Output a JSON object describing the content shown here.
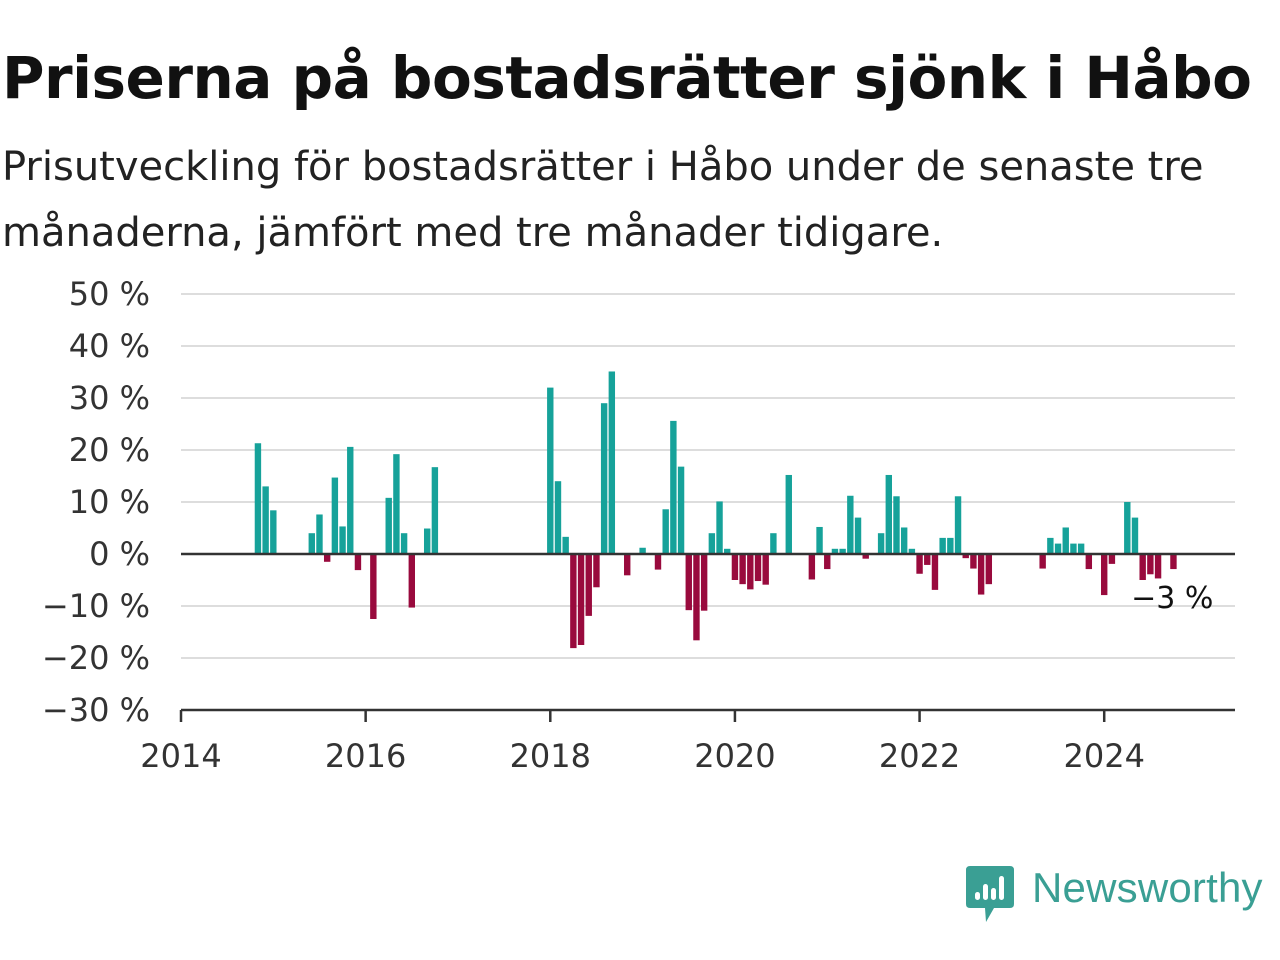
{
  "title": "Priserna på bostadsrätter sjönk i Håbo",
  "subtitle": "Prisutveckling för bostadsrätter i Håbo under de senaste tre månaderna, jämfört med tre månader tidigare.",
  "brand": {
    "name": "Newsworthy",
    "color": "#3a9f94",
    "icon": "newsworthy-logo-icon"
  },
  "colors": {
    "positive": "#16a29a",
    "negative": "#990a3d",
    "grid": "#dddddd",
    "zero_line": "#333333"
  },
  "chart_data": {
    "type": "bar",
    "x_unit": "month",
    "xlim": [
      "2014-01",
      "2025-06"
    ],
    "ylim": [
      -30,
      50
    ],
    "grid": true,
    "y_ticks": [
      {
        "value": 50,
        "label": "50 %"
      },
      {
        "value": 40,
        "label": "40 %"
      },
      {
        "value": 30,
        "label": "30 %"
      },
      {
        "value": 20,
        "label": "20 %"
      },
      {
        "value": 10,
        "label": "10 %"
      },
      {
        "value": 0,
        "label": "0 %"
      },
      {
        "value": -10,
        "label": "−10 %"
      },
      {
        "value": -20,
        "label": "−20 %"
      },
      {
        "value": -30,
        "label": "−30 %"
      }
    ],
    "x_ticks": [
      {
        "date": "2014-01",
        "label": "2014"
      },
      {
        "date": "2016-01",
        "label": "2016"
      },
      {
        "date": "2018-01",
        "label": "2018"
      },
      {
        "date": "2020-01",
        "label": "2020"
      },
      {
        "date": "2022-01",
        "label": "2022"
      },
      {
        "date": "2024-01",
        "label": "2024"
      }
    ],
    "last_value_label": "−3 %",
    "series": [
      {
        "points": [
          {
            "x": "2014-11",
            "y": 21.3
          },
          {
            "x": "2014-12",
            "y": 13.0
          },
          {
            "x": "2015-01",
            "y": 8.4
          },
          {
            "x": "2015-06",
            "y": 4.0
          },
          {
            "x": "2015-07",
            "y": 7.6
          },
          {
            "x": "2015-08",
            "y": -1.5
          },
          {
            "x": "2015-09",
            "y": 14.7
          },
          {
            "x": "2015-10",
            "y": 5.3
          },
          {
            "x": "2015-11",
            "y": 20.6
          },
          {
            "x": "2015-12",
            "y": -3.1
          },
          {
            "x": "2016-02",
            "y": -12.5
          },
          {
            "x": "2016-04",
            "y": 10.8
          },
          {
            "x": "2016-05",
            "y": 19.2
          },
          {
            "x": "2016-06",
            "y": 4.0
          },
          {
            "x": "2016-07",
            "y": -10.3
          },
          {
            "x": "2016-09",
            "y": 4.9
          },
          {
            "x": "2016-10",
            "y": 16.7
          },
          {
            "x": "2018-01",
            "y": 32.0
          },
          {
            "x": "2018-02",
            "y": 14.0
          },
          {
            "x": "2018-03",
            "y": 3.3
          },
          {
            "x": "2018-04",
            "y": -18.1
          },
          {
            "x": "2018-05",
            "y": -17.5
          },
          {
            "x": "2018-06",
            "y": -11.9
          },
          {
            "x": "2018-07",
            "y": -6.4
          },
          {
            "x": "2018-08",
            "y": 29.0
          },
          {
            "x": "2018-09",
            "y": 35.1
          },
          {
            "x": "2018-11",
            "y": -4.1
          },
          {
            "x": "2019-01",
            "y": 1.2
          },
          {
            "x": "2019-03",
            "y": -3.0
          },
          {
            "x": "2019-04",
            "y": 8.6
          },
          {
            "x": "2019-05",
            "y": 25.6
          },
          {
            "x": "2019-06",
            "y": 16.8
          },
          {
            "x": "2019-07",
            "y": -10.8
          },
          {
            "x": "2019-08",
            "y": -16.6
          },
          {
            "x": "2019-09",
            "y": -10.9
          },
          {
            "x": "2019-10",
            "y": 4.0
          },
          {
            "x": "2019-11",
            "y": 10.1
          },
          {
            "x": "2019-12",
            "y": 1.0
          },
          {
            "x": "2020-01",
            "y": -5.0
          },
          {
            "x": "2020-02",
            "y": -5.8
          },
          {
            "x": "2020-03",
            "y": -6.8
          },
          {
            "x": "2020-04",
            "y": -5.2
          },
          {
            "x": "2020-05",
            "y": -5.9
          },
          {
            "x": "2020-06",
            "y": 4.0
          },
          {
            "x": "2020-08",
            "y": 15.2
          },
          {
            "x": "2020-11",
            "y": -4.9
          },
          {
            "x": "2020-12",
            "y": 5.2
          },
          {
            "x": "2021-01",
            "y": -2.9
          },
          {
            "x": "2021-02",
            "y": 1.0
          },
          {
            "x": "2021-03",
            "y": 1.0
          },
          {
            "x": "2021-04",
            "y": 11.2
          },
          {
            "x": "2021-05",
            "y": 7.0
          },
          {
            "x": "2021-06",
            "y": -0.9
          },
          {
            "x": "2021-08",
            "y": 4.0
          },
          {
            "x": "2021-09",
            "y": 15.2
          },
          {
            "x": "2021-10",
            "y": 11.1
          },
          {
            "x": "2021-11",
            "y": 5.1
          },
          {
            "x": "2021-12",
            "y": 1.0
          },
          {
            "x": "2022-01",
            "y": -3.8
          },
          {
            "x": "2022-02",
            "y": -2.1
          },
          {
            "x": "2022-03",
            "y": -6.9
          },
          {
            "x": "2022-04",
            "y": 3.1
          },
          {
            "x": "2022-05",
            "y": 3.1
          },
          {
            "x": "2022-06",
            "y": 11.1
          },
          {
            "x": "2022-07",
            "y": -0.8
          },
          {
            "x": "2022-08",
            "y": -2.8
          },
          {
            "x": "2022-09",
            "y": -7.8
          },
          {
            "x": "2022-10",
            "y": -5.8
          },
          {
            "x": "2023-05",
            "y": -2.8
          },
          {
            "x": "2023-06",
            "y": 3.1
          },
          {
            "x": "2023-07",
            "y": 2.0
          },
          {
            "x": "2023-08",
            "y": 5.1
          },
          {
            "x": "2023-09",
            "y": 2.0
          },
          {
            "x": "2023-10",
            "y": 2.0
          },
          {
            "x": "2023-11",
            "y": -2.9
          },
          {
            "x": "2024-01",
            "y": -7.9
          },
          {
            "x": "2024-02",
            "y": -1.9
          },
          {
            "x": "2024-04",
            "y": 10.0
          },
          {
            "x": "2024-05",
            "y": 7.0
          },
          {
            "x": "2024-06",
            "y": -5.0
          },
          {
            "x": "2024-07",
            "y": -3.9
          },
          {
            "x": "2024-08",
            "y": -4.7
          },
          {
            "x": "2024-10",
            "y": -2.9
          }
        ]
      }
    ]
  }
}
